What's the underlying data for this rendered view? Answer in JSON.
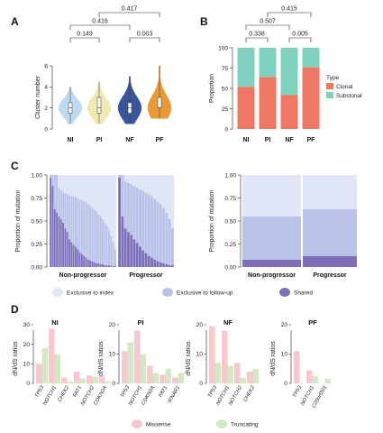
{
  "panels": {
    "a": "A",
    "b": "B",
    "c": "C",
    "d": "D"
  },
  "colors": {
    "NI": "#bcd9ef",
    "PI": "#f2e7ae",
    "NF": "#2f4e95",
    "PF": "#e6952c",
    "clonal": "#ef7766",
    "subclonal": "#7fd1bd",
    "excl_index": "#e0e6f6",
    "excl_followup": "#b9c2e8",
    "shared": "#7f6fba",
    "missense": "#f5c9d0",
    "truncating": "#d4e8c4"
  },
  "chart_data": [
    {
      "id": "A",
      "type": "violin",
      "categories": [
        "NI",
        "PI",
        "NF",
        "PF"
      ],
      "ylabel": "Cluster number",
      "ylim": [
        0,
        6
      ],
      "yticks": [
        0,
        2,
        4,
        6
      ],
      "medians": [
        2,
        2,
        2,
        2
      ],
      "iqr": [
        [
          1.5,
          2.5
        ],
        [
          1.5,
          3
        ],
        [
          1.5,
          2.5
        ],
        [
          2,
          3
        ]
      ],
      "ranges": [
        [
          0.5,
          4
        ],
        [
          0.5,
          4.5
        ],
        [
          0.5,
          5
        ],
        [
          1,
          6
        ]
      ],
      "comparisons": [
        {
          "pair": [
            "NI",
            "PI"
          ],
          "p": "0.149"
        },
        {
          "pair": [
            "NF",
            "PF"
          ],
          "p": "0.003"
        },
        {
          "pair": [
            "NI",
            "NF"
          ],
          "p": "0.416"
        },
        {
          "pair": [
            "PI",
            "PF"
          ],
          "p": "0.417"
        }
      ]
    },
    {
      "id": "B",
      "type": "bar",
      "categories": [
        "NI",
        "PI",
        "NF",
        "PF"
      ],
      "ylabel": "Proportion",
      "ylim": [
        0,
        100
      ],
      "yticks": [
        0,
        25,
        50,
        75,
        100
      ],
      "legend_title": "Type",
      "series": [
        {
          "name": "Clonal",
          "values": [
            52,
            64,
            42,
            76
          ]
        },
        {
          "name": "Subclonal",
          "values": [
            48,
            36,
            58,
            24
          ]
        }
      ],
      "comparisons": [
        {
          "pair": [
            "NI",
            "PI"
          ],
          "p": "0.338"
        },
        {
          "pair": [
            "NF",
            "PF"
          ],
          "p": "0.005"
        },
        {
          "pair": [
            "NI",
            "NF"
          ],
          "p": "0.507"
        },
        {
          "pair": [
            "PI",
            "PF"
          ],
          "p": "0.415"
        }
      ]
    },
    {
      "id": "C-left",
      "type": "bar",
      "ylabel": "Proportion of mutation",
      "ylim": [
        0,
        1
      ],
      "yticks": [
        "0.00",
        "0.25",
        "0.50",
        "0.75",
        "1.00"
      ],
      "groups": [
        "Non-progressor",
        "Progressor"
      ],
      "non_progressor": {
        "shared": [
          0.97,
          0.88,
          0.63,
          0.59,
          0.55,
          0.52,
          0.48,
          0.42,
          0.38,
          0.3,
          0.27,
          0.24,
          0.22,
          0.19,
          0.16,
          0.14,
          0.12,
          0.1,
          0.08,
          0.07,
          0.06,
          0.05,
          0.04,
          0.04,
          0.03,
          0.03,
          0.02,
          0.02,
          0.02,
          0.01,
          0.01,
          0.01
        ],
        "followup_top": [
          1.0,
          1.0,
          1.0,
          1.0,
          0.86,
          0.84,
          0.82,
          0.8,
          0.79,
          0.78,
          0.77,
          0.77,
          0.76,
          0.75,
          0.73,
          0.72,
          0.71,
          0.7,
          0.68,
          0.66,
          0.64,
          0.62,
          0.6,
          0.57,
          0.55,
          0.52,
          0.48,
          0.45,
          0.4,
          0.34,
          0.27,
          0.19
        ]
      },
      "progressor": {
        "shared": [
          0.97,
          0.55,
          0.42,
          0.38,
          0.35,
          0.3,
          0.26,
          0.22,
          0.18,
          0.15,
          0.12,
          0.1,
          0.08,
          0.06,
          0.05,
          0.04,
          0.03,
          0.02,
          0.02
        ],
        "followup_top": [
          1.0,
          1.0,
          0.93,
          0.91,
          0.9,
          0.88,
          0.86,
          0.84,
          0.83,
          0.81,
          0.79,
          0.77,
          0.74,
          0.71,
          0.68,
          0.64,
          0.59,
          0.52,
          0.42
        ]
      }
    },
    {
      "id": "C-right",
      "type": "bar",
      "ylabel": "Proportion of mutation",
      "ylim": [
        0,
        1
      ],
      "yticks": [
        "0.00",
        "0.25",
        "0.50",
        "0.75",
        "1.00"
      ],
      "categories": [
        "Non-progressor",
        "Progressor"
      ],
      "series": [
        {
          "name": "Shared",
          "values": [
            0.08,
            0.12
          ]
        },
        {
          "name": "Exclusive to follow-up",
          "values": [
            0.47,
            0.51
          ]
        },
        {
          "name": "Exclusive to index",
          "values": [
            0.45,
            0.37
          ]
        }
      ],
      "legend": [
        "Exclusive to index",
        "Exclusive to follow-up",
        "Shared"
      ]
    },
    {
      "id": "D",
      "type": "bar",
      "ylabel": "dN/dS ratios",
      "yticks": [
        0,
        10,
        20,
        30
      ],
      "legend": [
        "Missense",
        "Truncating"
      ],
      "subplots": [
        {
          "title": "NI",
          "ymax": 30,
          "genes": [
            "TP53",
            "NOTCH1",
            "CHEK2",
            "FAT1",
            "NOTCH2",
            "CDKN2A"
          ],
          "missense": [
            10,
            28,
            3,
            6,
            4,
            4
          ],
          "truncating": [
            18,
            15,
            1,
            2.5,
            3.5,
            1
          ]
        },
        {
          "title": "PI",
          "ymax": 20,
          "genes": [
            "TP53",
            "NOTCH1",
            "CDKN2A",
            "FAT1",
            "IFNAR1"
          ],
          "missense": [
            11,
            18,
            6,
            3,
            2
          ],
          "truncating": [
            14,
            10,
            3.5,
            5,
            3.5
          ]
        },
        {
          "title": "NF",
          "ymax": 20,
          "genes": [
            "TP53",
            "NOTCH1",
            "NOTCH2",
            "CHEK2"
          ],
          "missense": [
            19.5,
            18,
            7,
            4
          ],
          "truncating": [
            7,
            6,
            2,
            5
          ]
        },
        {
          "title": "PF",
          "ymax": 20,
          "genes": [
            "TP53",
            "NOTCH1",
            "C20orf201"
          ],
          "missense": [
            11,
            4.5,
            0
          ],
          "truncating": [
            0,
            2.5,
            1.5
          ]
        }
      ]
    }
  ]
}
